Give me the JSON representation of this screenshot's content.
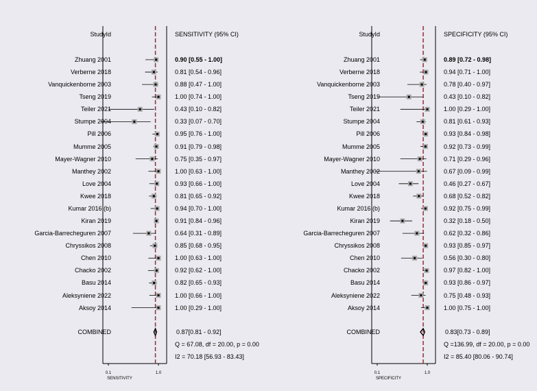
{
  "chart_data": [
    {
      "type": "forest",
      "id_header": "StudyId",
      "value_header": "SENSITIVITY (95% CI)",
      "xlabel": "SENSITIVITY",
      "xticks": [
        "0.1",
        "1.0"
      ],
      "xscale": "log",
      "xlim": [
        0.08,
        1.3
      ],
      "pooled_line": 0.87,
      "studies": [
        {
          "name": "Zhuang 2001",
          "est": 0.9,
          "lo": 0.55,
          "hi": 1.0,
          "text": "0.90 [0.55 - 1.00]",
          "bold": true
        },
        {
          "name": "Verberne 2018",
          "est": 0.81,
          "lo": 0.54,
          "hi": 0.96,
          "text": "0.81 [0.54 - 0.96]"
        },
        {
          "name": "Vanquickenborne 2003",
          "est": 0.88,
          "lo": 0.47,
          "hi": 1.0,
          "text": "0.88 [0.47 - 1.00]"
        },
        {
          "name": "Tseng 2019",
          "est": 1.0,
          "lo": 0.74,
          "hi": 1.0,
          "text": "1.00 [0.74 - 1.00]"
        },
        {
          "name": "Teiler 2021",
          "est": 0.43,
          "lo": 0.1,
          "hi": 0.82,
          "text": "0.43 [0.10 - 0.82]"
        },
        {
          "name": "Stumpe 2004",
          "est": 0.33,
          "lo": 0.07,
          "hi": 0.7,
          "text": "0.33 [0.07 - 0.70]"
        },
        {
          "name": "Pill 2006",
          "est": 0.95,
          "lo": 0.76,
          "hi": 1.0,
          "text": "0.95 [0.76 - 1.00]"
        },
        {
          "name": "Mumme 2005",
          "est": 0.91,
          "lo": 0.79,
          "hi": 0.98,
          "text": "0.91 [0.79 - 0.98]"
        },
        {
          "name": "Mayer-Wagner 2010",
          "est": 0.75,
          "lo": 0.35,
          "hi": 0.97,
          "text": "0.75 [0.35 - 0.97]"
        },
        {
          "name": "Manthey 2002",
          "est": 1.0,
          "lo": 0.63,
          "hi": 1.0,
          "text": "1.00 [0.63 - 1.00]"
        },
        {
          "name": "Love 2004",
          "est": 0.93,
          "lo": 0.66,
          "hi": 1.0,
          "text": "0.93 [0.66 - 1.00]"
        },
        {
          "name": "Kwee 2018",
          "est": 0.81,
          "lo": 0.65,
          "hi": 0.92,
          "text": "0.81 [0.65 - 0.92]"
        },
        {
          "name": "Kumar 2016 (b)",
          "est": 0.94,
          "lo": 0.7,
          "hi": 1.0,
          "text": "0.94 [0.70 - 1.00]"
        },
        {
          "name": "Kiran 2019",
          "est": 0.91,
          "lo": 0.84,
          "hi": 0.96,
          "text": "0.91 [0.84 - 0.96]"
        },
        {
          "name": "Garcia-Barrecheguren 2007",
          "est": 0.64,
          "lo": 0.31,
          "hi": 0.89,
          "text": "0.64 [0.31 - 0.89]"
        },
        {
          "name": "Chryssikos 2008",
          "est": 0.85,
          "lo": 0.68,
          "hi": 0.95,
          "text": "0.85 [0.68 - 0.95]"
        },
        {
          "name": "Chen 2010",
          "est": 1.0,
          "lo": 0.63,
          "hi": 1.0,
          "text": "1.00 [0.63 - 1.00]"
        },
        {
          "name": "Chacko 2002",
          "est": 0.92,
          "lo": 0.62,
          "hi": 1.0,
          "text": "0.92 [0.62 - 1.00]"
        },
        {
          "name": "Basu 2014",
          "est": 0.82,
          "lo": 0.65,
          "hi": 0.93,
          "text": "0.82 [0.65 - 0.93]"
        },
        {
          "name": "Aleksyniene 2022",
          "est": 1.0,
          "lo": 0.66,
          "hi": 1.0,
          "text": "1.00 [0.66 - 1.00]"
        },
        {
          "name": "Aksoy 2014",
          "est": 1.0,
          "lo": 0.29,
          "hi": 1.0,
          "text": "1.00 [0.29 - 1.00]"
        }
      ],
      "combined": {
        "label": "COMBINED",
        "est": 0.87,
        "lo": 0.81,
        "hi": 0.92,
        "text": "0.87[0.81 - 0.92]"
      },
      "q_text": "Q = 67.08, df = 20.00, p =  0.00",
      "i2_text": "I2 = 70.18 [56.93 - 83.43]"
    },
    {
      "type": "forest",
      "id_header": "StudyId",
      "value_header": "SPECIFICITY (95% CI)",
      "xlabel": "SPECIFICITY",
      "xticks": [
        "0.1",
        "1.0"
      ],
      "xscale": "log",
      "xlim": [
        0.08,
        1.3
      ],
      "pooled_line": 0.83,
      "studies": [
        {
          "name": "Zhuang 2001",
          "est": 0.89,
          "lo": 0.72,
          "hi": 0.98,
          "text": "0.89 [0.72 - 0.98]",
          "bold": true
        },
        {
          "name": "Verberne 2018",
          "est": 0.94,
          "lo": 0.71,
          "hi": 1.0,
          "text": "0.94 [0.71 - 1.00]"
        },
        {
          "name": "Vanquickenborne 2003",
          "est": 0.78,
          "lo": 0.4,
          "hi": 0.97,
          "text": "0.78 [0.40 - 0.97]"
        },
        {
          "name": "Tseng 2019",
          "est": 0.43,
          "lo": 0.1,
          "hi": 0.82,
          "text": "0.43 [0.10 - 0.82]"
        },
        {
          "name": "Teiler 2021",
          "est": 1.0,
          "lo": 0.29,
          "hi": 1.0,
          "text": "1.00 [0.29 - 1.00]"
        },
        {
          "name": "Stumpe 2004",
          "est": 0.81,
          "lo": 0.61,
          "hi": 0.93,
          "text": "0.81 [0.61 - 0.93]"
        },
        {
          "name": "Pill 2006",
          "est": 0.93,
          "lo": 0.84,
          "hi": 0.98,
          "text": "0.93 [0.84 - 0.98]"
        },
        {
          "name": "Mumme 2005",
          "est": 0.92,
          "lo": 0.73,
          "hi": 0.99,
          "text": "0.92 [0.73 - 0.99]"
        },
        {
          "name": "Mayer-Wagner 2010",
          "est": 0.71,
          "lo": 0.29,
          "hi": 0.96,
          "text": "0.71 [0.29 - 0.96]"
        },
        {
          "name": "Manthey 2002",
          "est": 0.67,
          "lo": 0.09,
          "hi": 0.99,
          "text": "0.67 [0.09 - 0.99]"
        },
        {
          "name": "Love 2004",
          "est": 0.46,
          "lo": 0.27,
          "hi": 0.67,
          "text": "0.46 [0.27 - 0.67]"
        },
        {
          "name": "Kwee 2018",
          "est": 0.68,
          "lo": 0.52,
          "hi": 0.82,
          "text": "0.68 [0.52 - 0.82]"
        },
        {
          "name": "Kumar 2016 (b)",
          "est": 0.92,
          "lo": 0.75,
          "hi": 0.99,
          "text": "0.92 [0.75 - 0.99]"
        },
        {
          "name": "Kiran 2019",
          "est": 0.32,
          "lo": 0.18,
          "hi": 0.5,
          "text": "0.32 [0.18 - 0.50]"
        },
        {
          "name": "Garcia-Barrecheguren 2007",
          "est": 0.62,
          "lo": 0.32,
          "hi": 0.86,
          "text": "0.62 [0.32 - 0.86]"
        },
        {
          "name": "Chryssikos 2008",
          "est": 0.93,
          "lo": 0.85,
          "hi": 0.97,
          "text": "0.93 [0.85 - 0.97]"
        },
        {
          "name": "Chen 2010",
          "est": 0.56,
          "lo": 0.3,
          "hi": 0.8,
          "text": "0.56 [0.30 - 0.80]"
        },
        {
          "name": "Chacko 2002",
          "est": 0.97,
          "lo": 0.82,
          "hi": 1.0,
          "text": "0.97 [0.82 - 1.00]"
        },
        {
          "name": "Basu 2014",
          "est": 0.93,
          "lo": 0.86,
          "hi": 0.97,
          "text": "0.93 [0.86 - 0.97]"
        },
        {
          "name": "Aleksyniene 2022",
          "est": 0.75,
          "lo": 0.48,
          "hi": 0.93,
          "text": "0.75 [0.48 - 0.93]"
        },
        {
          "name": "Aksoy 2014",
          "est": 1.0,
          "lo": 0.75,
          "hi": 1.0,
          "text": "1.00 [0.75 - 1.00]"
        }
      ],
      "combined": {
        "label": "COMBINED",
        "est": 0.83,
        "lo": 0.73,
        "hi": 0.89,
        "text": "0.83[0.73 - 0.89]"
      },
      "q_text": "Q =136.99, df = 20.00, p =  0.00",
      "i2_text": "I2 = 85.40 [80.06 - 90.74]"
    }
  ],
  "colors": {
    "background": "#eaeaf0",
    "pooled_line": "#b22222",
    "marker_box": "#a9a9a9",
    "marker_dot": "#000000"
  }
}
